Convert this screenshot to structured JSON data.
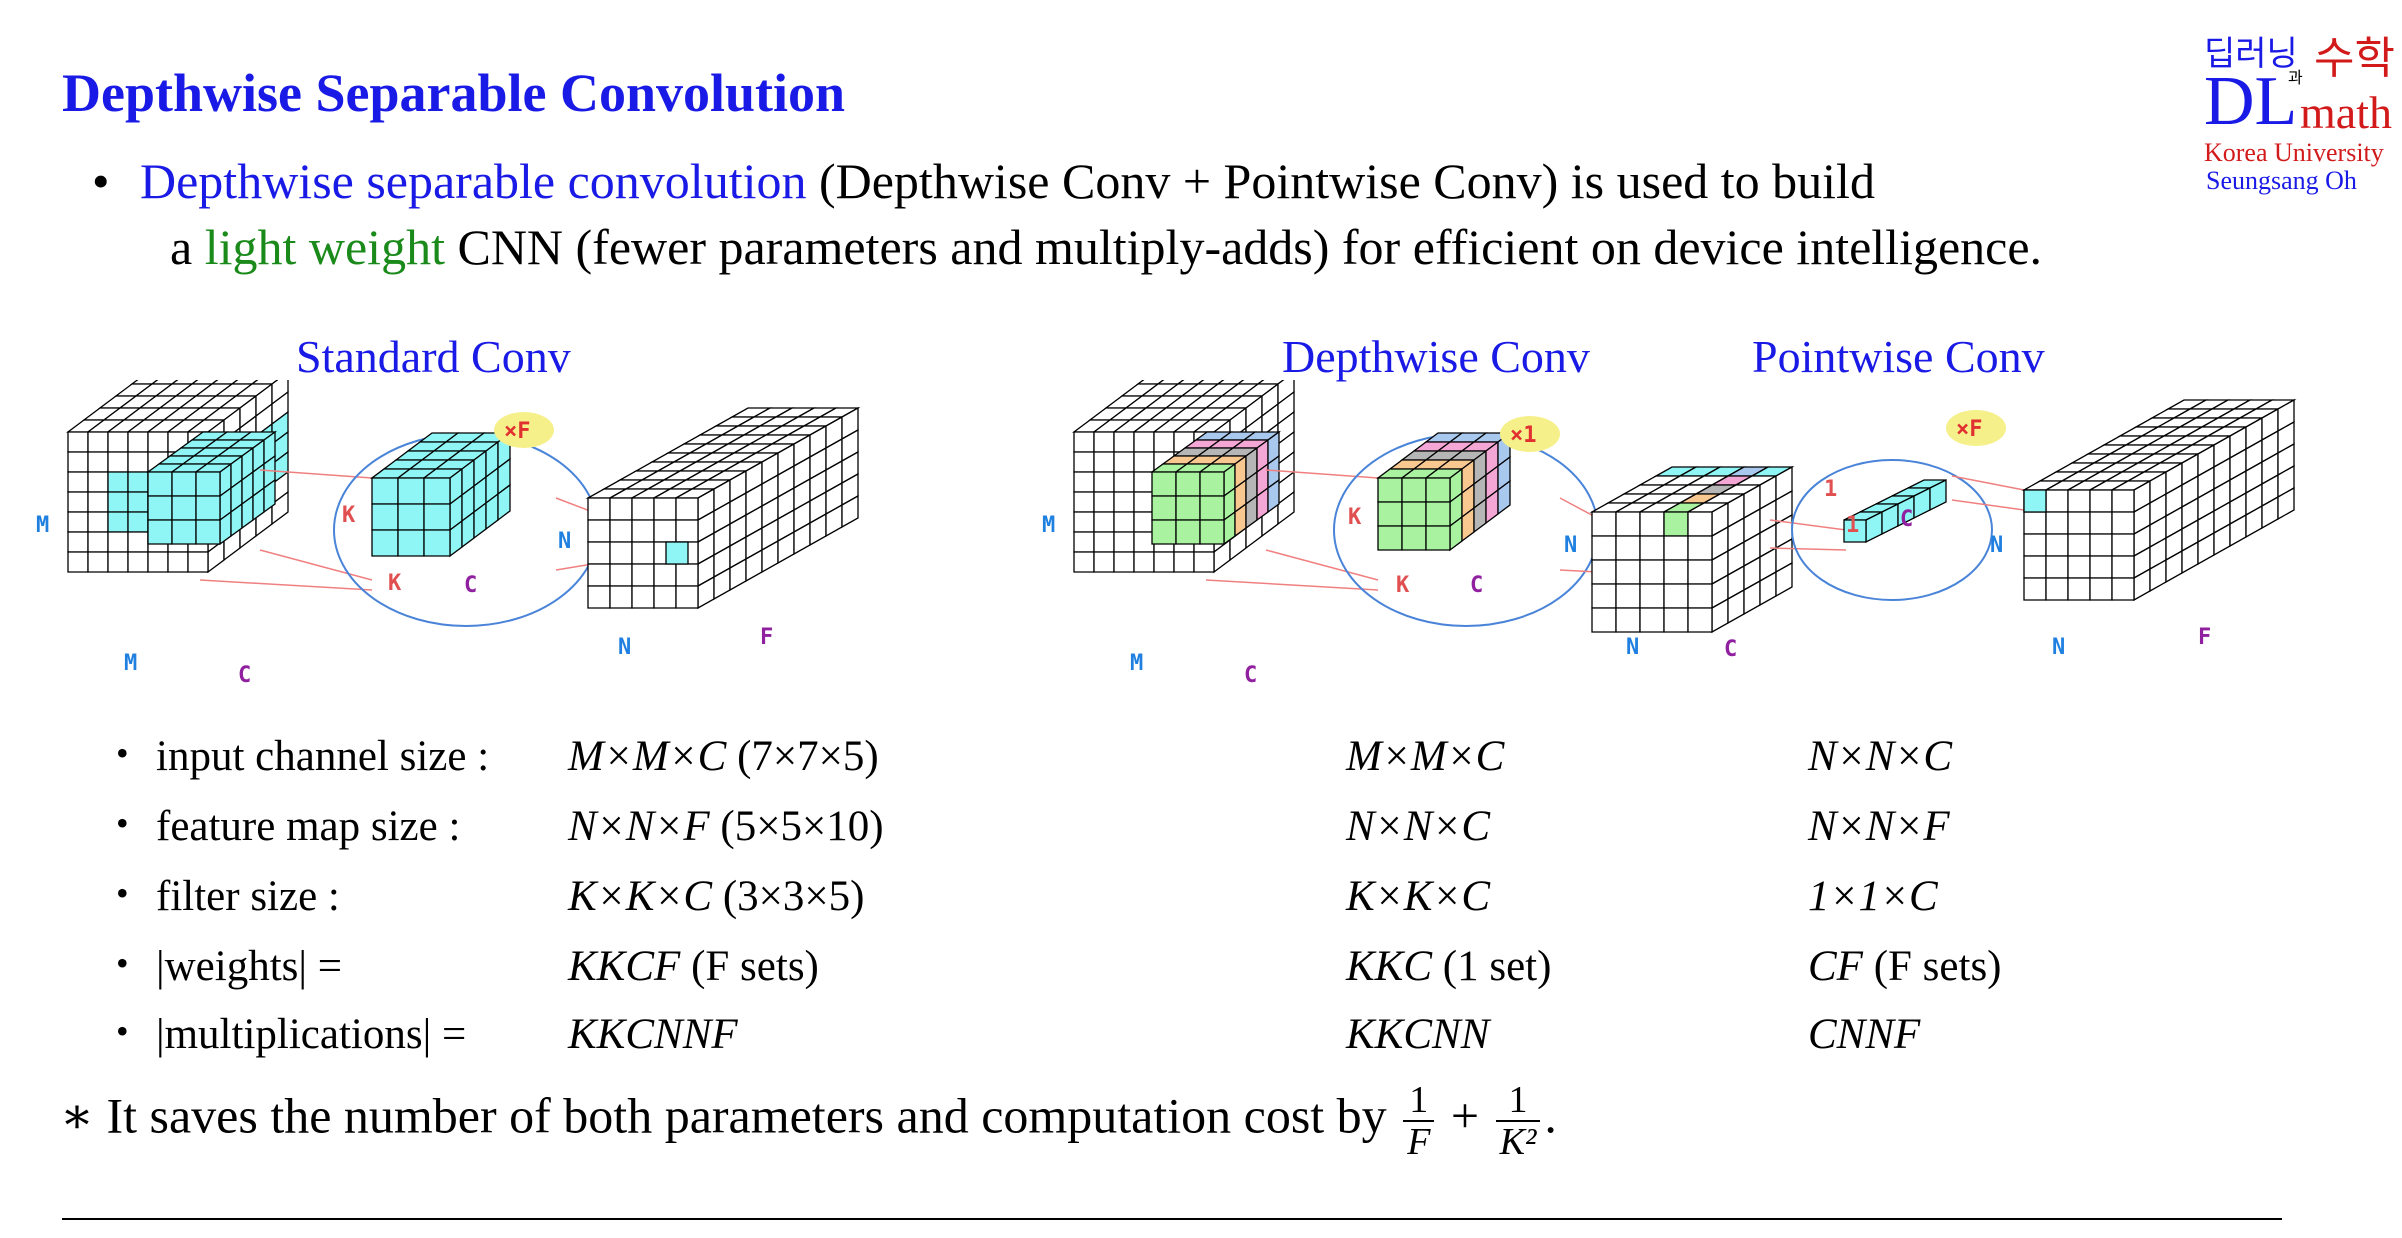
{
  "title": "Depthwise Separable Convolution",
  "logo": {
    "korean_left": "딥러닝",
    "korean_mid": "과",
    "korean_right": "수학",
    "dl": "DL",
    "math": "math",
    "university": "Korea University",
    "author": "Seungsang Oh"
  },
  "intro": {
    "dot": "•",
    "line1_term": "Depthwise separable convolution",
    "line1_rest": " (Depthwise Conv + Pointwise Conv) is used to build",
    "line2_pre": "a ",
    "line2_term": "light weight",
    "line2_rest": " CNN (fewer parameters and multiply-adds) for efficient on device intelligence."
  },
  "sections": {
    "standard": "Standard Conv",
    "depthwise": "Depthwise Conv",
    "pointwise": "Pointwise Conv"
  },
  "diagram_labels": {
    "M": "M",
    "C": "C",
    "K": "K",
    "N": "N",
    "F": "F",
    "one": "1",
    "times_F": "×F",
    "times_1": "×1"
  },
  "colors": {
    "cyan": "#8ff5f5",
    "green": "#a8f2a0",
    "orange": "#f8c890",
    "gray": "#b6b6b6",
    "pink": "#f4a6d4",
    "blue": "#a8c8ee",
    "circle": "#4a84d8",
    "yellow": "#f6f08a",
    "red_line": "#f08080"
  },
  "rows": [
    {
      "label": "input channel size :",
      "standard": "M×M×C",
      "standard_note": "(7×7×5)",
      "depthwise": "M×M×C",
      "depthwise_note": "",
      "pointwise": "N×N×C",
      "pointwise_note": ""
    },
    {
      "label": "feature map size :",
      "standard": "N×N×F",
      "standard_note": "(5×5×10)",
      "depthwise": "N×N×C",
      "depthwise_note": "",
      "pointwise": "N×N×F",
      "pointwise_note": ""
    },
    {
      "label": "filter size :",
      "standard": "K×K×C",
      "standard_note": "(3×3×5)",
      "depthwise": "K×K×C",
      "depthwise_note": "",
      "pointwise": "1×1×C",
      "pointwise_note": ""
    },
    {
      "label": "|weights| =",
      "standard": "KKCF",
      "standard_note": "(F sets)",
      "depthwise": "KKC",
      "depthwise_note": "(1 set)",
      "pointwise": "CF",
      "pointwise_note": "(F sets)"
    },
    {
      "label": "|multiplications| =",
      "standard": "KKCNNF",
      "standard_note": "",
      "depthwise": "KKCNN",
      "depthwise_note": "",
      "pointwise": "CNNF",
      "pointwise_note": ""
    }
  ],
  "bullet_small": "•",
  "footer": {
    "star": "∗",
    "text": " It saves the number of both parameters and computation cost by ",
    "frac1_num": "1",
    "frac1_den": "F",
    "plus": " + ",
    "frac2_num": "1",
    "frac2_den": "K²",
    "end": "."
  }
}
